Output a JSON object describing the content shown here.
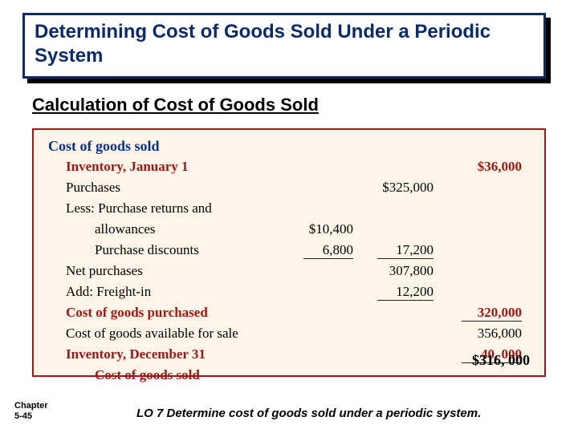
{
  "title": "Determining Cost of Goods Sold Under a Periodic System",
  "subtitle": "Calculation of Cost of Goods Sold",
  "header": "Cost of goods sold",
  "rows": {
    "inv_begin_label": "Inventory, January 1",
    "inv_begin_val": "$36,000",
    "purchases_label": "Purchases",
    "purchases_val": "$325,000",
    "less_label": "Less: Purchase returns and",
    "allow_label": "allowances",
    "allow_val": "$10,400",
    "disc_label": "Purchase discounts",
    "disc_val": "6,800",
    "less_total": "17,200",
    "net_purch_label": "Net purchases",
    "net_purch_val": "307,800",
    "freight_label": "Add: Freight-in",
    "freight_val": "12,200",
    "cogp_label": "Cost of goods purchased",
    "cogp_val": "320,000",
    "avail_label": "Cost of goods available for sale",
    "avail_val": "356,000",
    "inv_end_label": "Inventory, December 31",
    "inv_end_val": "40, 000",
    "cogs_label": "Cost of goods sold",
    "cogs_val": "$316, 000"
  },
  "chapter_line1": "Chapter",
  "chapter_line2": "5-45",
  "lo": "LO 7  Determine cost of goods sold under a periodic system.",
  "colors": {
    "title_border": "#0a2a6b",
    "figure_bg": "#fdf6e8",
    "figure_border": "#a31515",
    "header_blue": "#083090",
    "red": "#a31515"
  }
}
